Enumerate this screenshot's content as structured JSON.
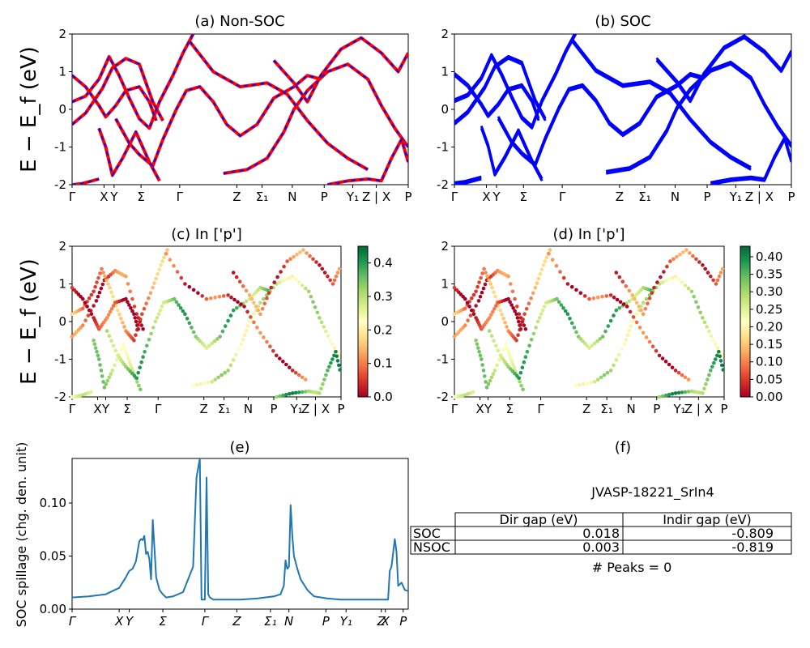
{
  "figure": {
    "band_ylabel": "E − E_f (eV)",
    "spillage_ylabel": "SOC spillage (chg. den. unit)"
  },
  "kpath_labels": [
    "Γ",
    "X",
    "Y",
    "Σ",
    "Γ",
    "Z",
    "Σ₁",
    "N",
    "P",
    "Y₁",
    "Z | X",
    "P"
  ],
  "spillage_kpath_labels": [
    "Γ",
    "X",
    "Y",
    "Σ",
    "Γ",
    "Z",
    "Σ₁",
    "N",
    "P",
    "Y₁",
    "Z",
    "X",
    "P"
  ],
  "colors": {
    "nonsoc": "#ff0000",
    "soc": "#0000ff",
    "spillage": "#1f77b4"
  },
  "chart_data": [
    {
      "type": "line",
      "title": "(a) Non-SOC",
      "ylabel": "E − E_f (eV)",
      "ylim": [
        -2,
        2
      ],
      "yticks": [
        -2,
        -1,
        0,
        1,
        2
      ],
      "xticks": [
        "Γ",
        "X",
        "Y",
        "Σ",
        "Γ",
        "Z",
        "Σ₁",
        "N",
        "P",
        "Y₁",
        "Z | X",
        "P"
      ],
      "series": [
        {
          "style": "solid-red-dashed-blue",
          "bands": [
            [
              [
                0,
                -2.0
              ],
              [
                0.03,
                -1.97
              ],
              [
                0.08,
                -1.85
              ]
            ],
            [
              [
                0,
                -0.4
              ],
              [
                0.04,
                -0.1
              ],
              [
                0.09,
                0.55
              ],
              [
                0.12,
                1.1
              ],
              [
                0.16,
                1.35
              ],
              [
                0.2,
                1.2
              ],
              [
                0.24,
                0.2
              ],
              [
                0.27,
                -0.3
              ]
            ],
            [
              [
                0,
                0.2
              ],
              [
                0.04,
                0.35
              ],
              [
                0.08,
                0.8
              ],
              [
                0.11,
                1.4
              ],
              [
                0.14,
                0.9
              ],
              [
                0.17,
                0.3
              ],
              [
                0.2,
                -0.25
              ],
              [
                0.23,
                -0.5
              ],
              [
                0.26,
                0.2
              ],
              [
                0.3,
                0.9
              ],
              [
                0.33,
                1.5
              ],
              [
                0.36,
                2.0
              ]
            ],
            [
              [
                0,
                0.9
              ],
              [
                0.04,
                0.6
              ],
              [
                0.08,
                0.1
              ],
              [
                0.1,
                -0.2
              ],
              [
                0.13,
                0.1
              ],
              [
                0.16,
                0.5
              ],
              [
                0.2,
                0.6
              ],
              [
                0.23,
                0.2
              ],
              [
                0.25,
                -0.3
              ]
            ],
            [
              [
                0.08,
                -0.5
              ],
              [
                0.1,
                -1.0
              ],
              [
                0.12,
                -1.75
              ],
              [
                0.15,
                -1.3
              ],
              [
                0.19,
                -0.6
              ],
              [
                0.21,
                -1.0
              ],
              [
                0.23,
                -1.4
              ],
              [
                0.26,
                -1.9
              ]
            ],
            [
              [
                0.13,
                -0.25
              ],
              [
                0.17,
                -0.9
              ],
              [
                0.2,
                -1.2
              ],
              [
                0.24,
                -1.5
              ],
              [
                0.27,
                -0.8
              ],
              [
                0.31,
                0.0
              ],
              [
                0.34,
                0.5
              ],
              [
                0.38,
                0.6
              ],
              [
                0.42,
                0.2
              ],
              [
                0.46,
                -0.4
              ],
              [
                0.5,
                -0.7
              ],
              [
                0.55,
                -0.4
              ],
              [
                0.6,
                0.3
              ],
              [
                0.66,
                0.6
              ],
              [
                0.7,
                0.9
              ],
              [
                0.74,
                0.8
              ]
            ],
            [
              [
                0.45,
                -1.7
              ],
              [
                0.52,
                -1.6
              ],
              [
                0.58,
                -1.3
              ],
              [
                0.63,
                -0.6
              ],
              [
                0.66,
                0.0
              ],
              [
                0.7,
                0.5
              ],
              [
                0.76,
                1.0
              ],
              [
                0.82,
                1.2
              ],
              [
                0.88,
                0.8
              ],
              [
                0.92,
                0.1
              ],
              [
                0.96,
                -0.5
              ],
              [
                1.0,
                -1.0
              ]
            ],
            [
              [
                0.35,
                1.8
              ],
              [
                0.42,
                1.0
              ],
              [
                0.5,
                0.6
              ],
              [
                0.58,
                0.7
              ],
              [
                0.64,
                0.4
              ],
              [
                0.7,
                -0.3
              ],
              [
                0.76,
                -0.9
              ],
              [
                0.82,
                -1.3
              ],
              [
                0.88,
                -1.6
              ]
            ],
            [
              [
                0.6,
                1.3
              ],
              [
                0.66,
                0.7
              ],
              [
                0.7,
                0.2
              ],
              [
                0.74,
                0.9
              ],
              [
                0.8,
                1.6
              ],
              [
                0.86,
                1.9
              ],
              [
                0.92,
                1.5
              ],
              [
                0.97,
                1.0
              ],
              [
                1.0,
                1.5
              ]
            ],
            [
              [
                0.76,
                -2.0
              ],
              [
                0.82,
                -1.9
              ],
              [
                0.88,
                -1.85
              ],
              [
                0.92,
                -1.9
              ],
              [
                0.95,
                -1.3
              ],
              [
                0.98,
                -0.8
              ],
              [
                1.0,
                -1.4
              ]
            ]
          ]
        }
      ]
    },
    {
      "type": "line",
      "title": "(b) SOC",
      "ylim": [
        -2,
        2
      ],
      "yticks": [
        -2,
        -1,
        0,
        1,
        2
      ],
      "xticks": [
        "Γ",
        "X",
        "Y",
        "Σ",
        "Γ",
        "Z",
        "Σ₁",
        "N",
        "P",
        "Y₁",
        "Z | X",
        "P"
      ]
    },
    {
      "type": "scatter",
      "title": "(c)  In ['p']",
      "ylabel": "E − E_f (eV)",
      "ylim": [
        -2,
        2
      ],
      "yticks": [
        -2,
        -1,
        0,
        1,
        2
      ],
      "xticks": [
        "Γ",
        "X",
        "Y",
        "Σ",
        "Γ",
        "Z",
        "Σ₁",
        "N",
        "P",
        "Y₁",
        "Z | X",
        "P"
      ],
      "colorbar": {
        "range": [
          0.0,
          0.45
        ],
        "ticks": [
          "0.0",
          "0.1",
          "0.2",
          "0.3",
          "0.4"
        ]
      }
    },
    {
      "type": "scatter",
      "title": "(d) In ['p']",
      "ylim": [
        -2,
        2
      ],
      "yticks": [
        -2,
        -1,
        0,
        1,
        2
      ],
      "xticks": [
        "Γ",
        "X",
        "Y",
        "Σ",
        "Γ",
        "Z",
        "Σ₁",
        "N",
        "P",
        "Y₁",
        "Z | X",
        "P"
      ],
      "colorbar": {
        "range": [
          0.0,
          0.43
        ],
        "ticks": [
          "0.00",
          "0.05",
          "0.10",
          "0.15",
          "0.20",
          "0.25",
          "0.30",
          "0.35",
          "0.40"
        ]
      }
    },
    {
      "type": "line",
      "title": "(e)",
      "ylabel": "SOC spillage (chg. den. unit)",
      "ylim": [
        0.0,
        0.142
      ],
      "yticks": [
        "0.00",
        "0.05",
        "0.10"
      ],
      "xticks": [
        "Γ",
        "X",
        "Y",
        "Σ",
        "Γ",
        "Z",
        "Σ₁",
        "N",
        "P",
        "Y₁",
        "Z",
        "X",
        "P"
      ],
      "x": [
        0.0,
        0.05,
        0.1,
        0.14,
        0.16,
        0.17,
        0.18,
        0.19,
        0.2,
        0.205,
        0.21,
        0.215,
        0.22,
        0.225,
        0.23,
        0.235,
        0.24,
        0.25,
        0.26,
        0.27,
        0.28,
        0.3,
        0.33,
        0.36,
        0.37,
        0.38,
        0.385,
        0.39,
        0.395,
        0.4,
        0.405,
        0.41,
        0.415,
        0.42,
        0.425,
        0.43,
        0.44,
        0.46,
        0.5,
        0.55,
        0.6,
        0.62,
        0.63,
        0.635,
        0.64,
        0.645,
        0.65,
        0.655,
        0.66,
        0.67,
        0.68,
        0.7,
        0.72,
        0.76,
        0.8,
        0.85,
        0.9,
        0.93,
        0.94,
        0.945,
        0.95,
        0.96,
        0.965,
        0.97,
        0.98,
        0.99,
        1.0
      ],
      "values": [
        0.011,
        0.012,
        0.014,
        0.02,
        0.03,
        0.036,
        0.038,
        0.045,
        0.064,
        0.066,
        0.065,
        0.069,
        0.052,
        0.054,
        0.047,
        0.028,
        0.084,
        0.03,
        0.018,
        0.014,
        0.011,
        0.012,
        0.016,
        0.04,
        0.124,
        0.142,
        0.009,
        0.009,
        0.009,
        0.124,
        0.014,
        0.011,
        0.01,
        0.009,
        0.009,
        0.009,
        0.009,
        0.009,
        0.009,
        0.01,
        0.012,
        0.014,
        0.022,
        0.046,
        0.038,
        0.04,
        0.098,
        0.07,
        0.05,
        0.038,
        0.028,
        0.018,
        0.012,
        0.01,
        0.009,
        0.009,
        0.009,
        0.009,
        0.009,
        0.036,
        0.04,
        0.066,
        0.054,
        0.022,
        0.025,
        0.018,
        0.017
      ]
    },
    {
      "type": "table",
      "title": "(f)",
      "caption": "JVASP-18221_SrIn4",
      "columns": [
        "Dir gap (eV)",
        "Indir gap (eV)"
      ],
      "rows": [
        {
          "label": "SOC",
          "values": [
            "0.018",
            "-0.809"
          ]
        },
        {
          "label": "NSOC",
          "values": [
            "0.003",
            "-0.819"
          ]
        }
      ],
      "footer": "# Peaks = 0"
    }
  ]
}
